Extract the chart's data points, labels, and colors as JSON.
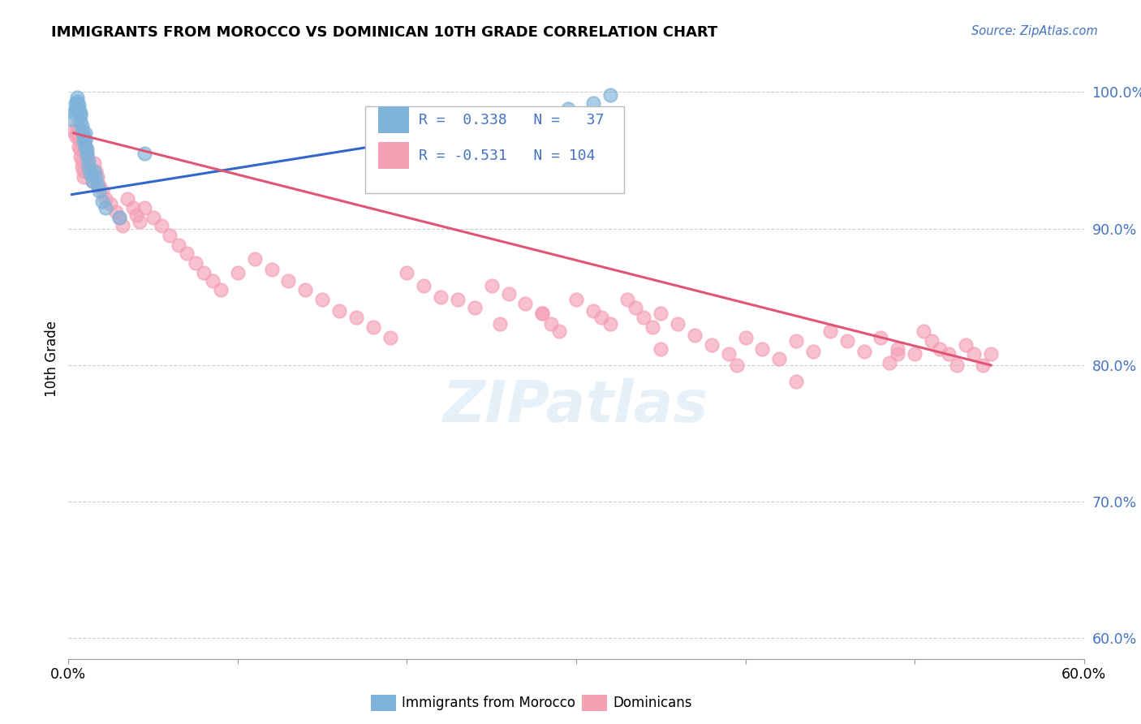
{
  "title": "IMMIGRANTS FROM MOROCCO VS DOMINICAN 10TH GRADE CORRELATION CHART",
  "source": "Source: ZipAtlas.com",
  "ylabel": "10th Grade",
  "ytick_labels": [
    "60.0%",
    "70.0%",
    "80.0%",
    "90.0%",
    "100.0%"
  ],
  "ytick_values": [
    0.6,
    0.7,
    0.8,
    0.9,
    1.0
  ],
  "xlim": [
    0.0,
    0.6
  ],
  "ylim": [
    0.585,
    1.025
  ],
  "legend_label1": "Immigrants from Morocco",
  "legend_label2": "Dominicans",
  "morocco_color": "#7fb3d9",
  "dominican_color": "#f4a0b5",
  "morocco_line_color": "#3366cc",
  "dominican_line_color": "#e05575",
  "morocco_x": [
    0.002,
    0.003,
    0.004,
    0.004,
    0.005,
    0.005,
    0.005,
    0.006,
    0.006,
    0.007,
    0.007,
    0.007,
    0.008,
    0.008,
    0.009,
    0.009,
    0.01,
    0.01,
    0.01,
    0.011,
    0.011,
    0.012,
    0.012,
    0.013,
    0.014,
    0.015,
    0.016,
    0.017,
    0.018,
    0.02,
    0.022,
    0.03,
    0.045,
    0.25,
    0.295,
    0.31,
    0.32
  ],
  "morocco_y": [
    0.98,
    0.985,
    0.992,
    0.988,
    0.996,
    0.993,
    0.988,
    0.991,
    0.987,
    0.985,
    0.983,
    0.978,
    0.975,
    0.972,
    0.968,
    0.964,
    0.97,
    0.965,
    0.96,
    0.958,
    0.954,
    0.95,
    0.945,
    0.94,
    0.935,
    0.942,
    0.938,
    0.932,
    0.928,
    0.92,
    0.915,
    0.908,
    0.955,
    0.978,
    0.988,
    0.992,
    0.998
  ],
  "dominican_x": [
    0.003,
    0.004,
    0.005,
    0.005,
    0.006,
    0.006,
    0.007,
    0.007,
    0.008,
    0.008,
    0.009,
    0.009,
    0.01,
    0.01,
    0.011,
    0.011,
    0.012,
    0.013,
    0.014,
    0.015,
    0.016,
    0.017,
    0.018,
    0.02,
    0.022,
    0.025,
    0.028,
    0.03,
    0.032,
    0.035,
    0.038,
    0.04,
    0.042,
    0.045,
    0.05,
    0.055,
    0.06,
    0.065,
    0.07,
    0.075,
    0.08,
    0.085,
    0.09,
    0.1,
    0.11,
    0.12,
    0.13,
    0.14,
    0.15,
    0.16,
    0.17,
    0.18,
    0.19,
    0.2,
    0.21,
    0.22,
    0.23,
    0.24,
    0.25,
    0.26,
    0.27,
    0.28,
    0.285,
    0.29,
    0.3,
    0.31,
    0.315,
    0.32,
    0.33,
    0.335,
    0.34,
    0.345,
    0.35,
    0.36,
    0.37,
    0.38,
    0.39,
    0.4,
    0.41,
    0.42,
    0.43,
    0.44,
    0.45,
    0.46,
    0.47,
    0.48,
    0.49,
    0.5,
    0.505,
    0.51,
    0.515,
    0.52,
    0.525,
    0.53,
    0.535,
    0.54,
    0.545,
    0.485,
    0.395,
    0.35,
    0.28,
    0.255,
    0.49,
    0.43
  ],
  "dominican_y": [
    0.972,
    0.968,
    0.975,
    0.97,
    0.965,
    0.96,
    0.958,
    0.953,
    0.95,
    0.945,
    0.942,
    0.938,
    0.965,
    0.96,
    0.955,
    0.95,
    0.945,
    0.94,
    0.935,
    0.948,
    0.942,
    0.938,
    0.932,
    0.928,
    0.922,
    0.918,
    0.912,
    0.908,
    0.902,
    0.922,
    0.915,
    0.91,
    0.905,
    0.915,
    0.908,
    0.902,
    0.895,
    0.888,
    0.882,
    0.875,
    0.868,
    0.862,
    0.855,
    0.868,
    0.878,
    0.87,
    0.862,
    0.855,
    0.848,
    0.84,
    0.835,
    0.828,
    0.82,
    0.868,
    0.858,
    0.85,
    0.848,
    0.842,
    0.858,
    0.852,
    0.845,
    0.838,
    0.83,
    0.825,
    0.848,
    0.84,
    0.835,
    0.83,
    0.848,
    0.842,
    0.835,
    0.828,
    0.838,
    0.83,
    0.822,
    0.815,
    0.808,
    0.82,
    0.812,
    0.805,
    0.818,
    0.81,
    0.825,
    0.818,
    0.81,
    0.82,
    0.812,
    0.808,
    0.825,
    0.818,
    0.812,
    0.808,
    0.8,
    0.815,
    0.808,
    0.8,
    0.808,
    0.802,
    0.8,
    0.812,
    0.838,
    0.83,
    0.808,
    0.788
  ],
  "morocco_line_x": [
    0.002,
    0.32
  ],
  "morocco_line_y": [
    0.925,
    0.988
  ],
  "dominican_line_x": [
    0.003,
    0.545
  ],
  "dominican_line_y": [
    0.97,
    0.8
  ]
}
